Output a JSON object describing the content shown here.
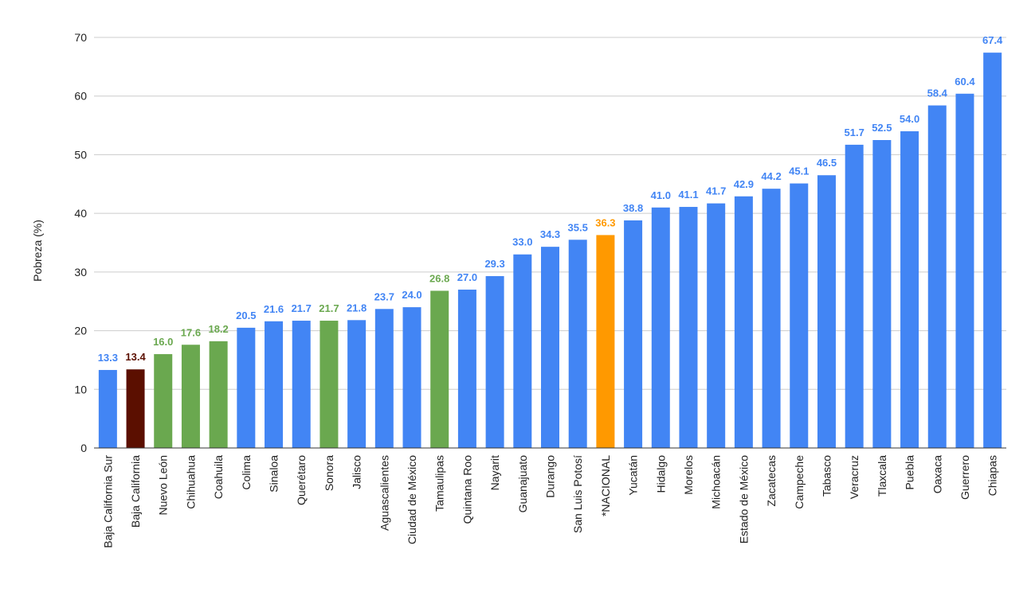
{
  "chart_data": {
    "type": "bar",
    "title": "",
    "xlabel": "",
    "ylabel": "Pobreza (%)",
    "ylim": [
      0,
      70
    ],
    "yticks": [
      "0",
      "10",
      "20",
      "30",
      "40",
      "50",
      "60",
      "70"
    ],
    "grid": true,
    "legend": "none",
    "categories": [
      "Baja California Sur",
      "Baja California",
      "Nuevo León",
      "Chihuahua",
      "Coahuila",
      "Colima",
      "Sinaloa",
      "Querétaro",
      "Sonora",
      "Jalisco",
      "Aguascalientes",
      "Ciudad de México",
      "Tamaulipas",
      "Quintana Roo",
      "Nayarit",
      "Guanajuato",
      "Durango",
      "San Luis Potosí",
      "*NACIONAL",
      "Yucatán",
      "Hidalgo",
      "Morelos",
      "Michoacán",
      "Estado de México",
      "Zacatecas",
      "Campeche",
      "Tabasco",
      "Veracruz",
      "Tlaxcala",
      "Puebla",
      "Oaxaca",
      "Guerrero",
      "Chiapas"
    ],
    "values": [
      13.3,
      13.4,
      16.0,
      17.6,
      18.2,
      20.5,
      21.6,
      21.7,
      21.7,
      21.8,
      23.7,
      24.0,
      26.8,
      27.0,
      29.3,
      33.0,
      34.3,
      35.5,
      36.3,
      38.8,
      41.0,
      41.1,
      41.7,
      42.9,
      44.2,
      45.1,
      46.5,
      51.7,
      52.5,
      54.0,
      58.4,
      60.4,
      67.4
    ],
    "value_labels": [
      "13.3",
      "13.4",
      "16.0",
      "17.6",
      "18.2",
      "20.5",
      "21.6",
      "21.7",
      "21.7",
      "21.8",
      "23.7",
      "24.0",
      "26.8",
      "27.0",
      "29.3",
      "33.0",
      "34.3",
      "35.5",
      "36.3",
      "38.8",
      "41.0",
      "41.1",
      "41.7",
      "42.9",
      "44.2",
      "45.1",
      "46.5",
      "51.7",
      "52.5",
      "54.0",
      "58.4",
      "60.4",
      "67.4"
    ],
    "bar_groups": [
      "blue",
      "darkred",
      "green",
      "green",
      "green",
      "blue",
      "blue",
      "blue",
      "green",
      "blue",
      "blue",
      "blue",
      "green",
      "blue",
      "blue",
      "blue",
      "blue",
      "blue",
      "orange",
      "blue",
      "blue",
      "blue",
      "blue",
      "blue",
      "blue",
      "blue",
      "blue",
      "blue",
      "blue",
      "blue",
      "blue",
      "blue",
      "blue"
    ],
    "colors": {
      "blue": {
        "bar": "#4285f4",
        "label": "#4285f4"
      },
      "darkred": {
        "bar": "#5b0f00",
        "label": "#5b0f00"
      },
      "green": {
        "bar": "#6aa84f",
        "label": "#6aa84f"
      },
      "orange": {
        "bar": "#ff9900",
        "label": "#ff9900"
      }
    }
  }
}
